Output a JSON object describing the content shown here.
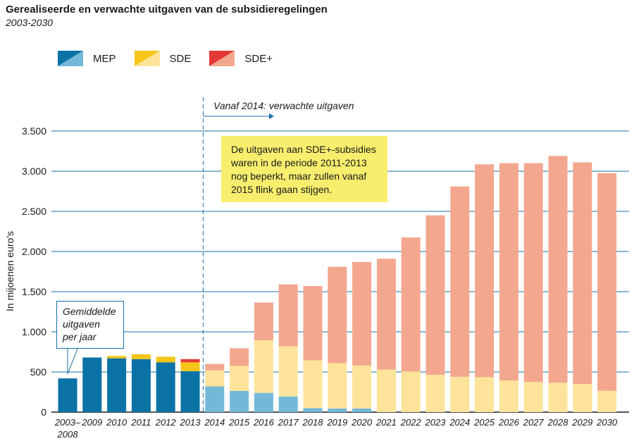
{
  "title": "Gerealiseerde en verwachte uitgaven van de subsidieregelingen",
  "subtitle": "2003-2030",
  "colors": {
    "mep_realized": "#0b72a5",
    "mep_expected": "#74b8d8",
    "sde_realized": "#f5c518",
    "sde_expected": "#fde49a",
    "sdeplus_realized": "#e53935",
    "sdeplus_expected": "#f4a78f",
    "grid": "#1b6fa6",
    "note_bg": "#f7ee6e"
  },
  "legend": [
    {
      "label": "MEP",
      "key": "mep"
    },
    {
      "label": "SDE",
      "key": "sde"
    },
    {
      "label": "SDE+",
      "key": "sdeplus"
    }
  ],
  "note": {
    "lines": [
      "De uitgaven aan SDE+-subsidies",
      "waren in de periode 2011-2013",
      "nog beperkt, maar zullen vanaf",
      "2015 flink gaan stijgen."
    ]
  },
  "avg_note": {
    "lines": [
      "Gemiddelde",
      "uitgaven",
      "per jaar"
    ]
  },
  "chart_data": {
    "type": "bar",
    "stacked": true,
    "title": "Gerealiseerde en verwachte uitgaven van de subsidieregelingen",
    "subtitle": "2003-2030",
    "xlabel": "",
    "ylabel": "In mijoenen euro's",
    "ylim": [
      0,
      3500
    ],
    "yticks": [
      0,
      500,
      1000,
      1500,
      2000,
      2500,
      3000,
      3500
    ],
    "ytick_labels": [
      "0",
      "500",
      "1.000",
      "1.500",
      "2.000",
      "2.500",
      "3.000",
      "3.500"
    ],
    "categories": [
      "2003–\n2008",
      "2009",
      "2010",
      "2011",
      "2012",
      "2013",
      "2014",
      "2015",
      "2016",
      "2017",
      "2018",
      "2019",
      "2020",
      "2021",
      "2022",
      "2023",
      "2024",
      "2025",
      "2026",
      "2027",
      "2028",
      "2029",
      "2030"
    ],
    "forecast_start_index": 6,
    "forecast_label": "Vanaf 2014: verwachte uitgaven",
    "series": [
      {
        "name": "MEP",
        "key": "mep",
        "values": [
          420,
          680,
          670,
          660,
          620,
          510,
          320,
          265,
          240,
          195,
          50,
          45,
          45,
          0,
          0,
          0,
          0,
          0,
          0,
          0,
          0,
          0,
          0
        ]
      },
      {
        "name": "SDE",
        "key": "sde",
        "values": [
          0,
          0,
          30,
          60,
          70,
          110,
          200,
          310,
          655,
          625,
          595,
          565,
          535,
          530,
          505,
          465,
          440,
          435,
          395,
          375,
          365,
          350,
          265
        ]
      },
      {
        "name": "SDE+",
        "key": "sdeplus",
        "values": [
          0,
          0,
          0,
          0,
          0,
          40,
          80,
          220,
          470,
          770,
          925,
          1200,
          1290,
          1380,
          1670,
          1985,
          2370,
          2650,
          2705,
          2725,
          2825,
          2760,
          2710
        ]
      }
    ]
  }
}
